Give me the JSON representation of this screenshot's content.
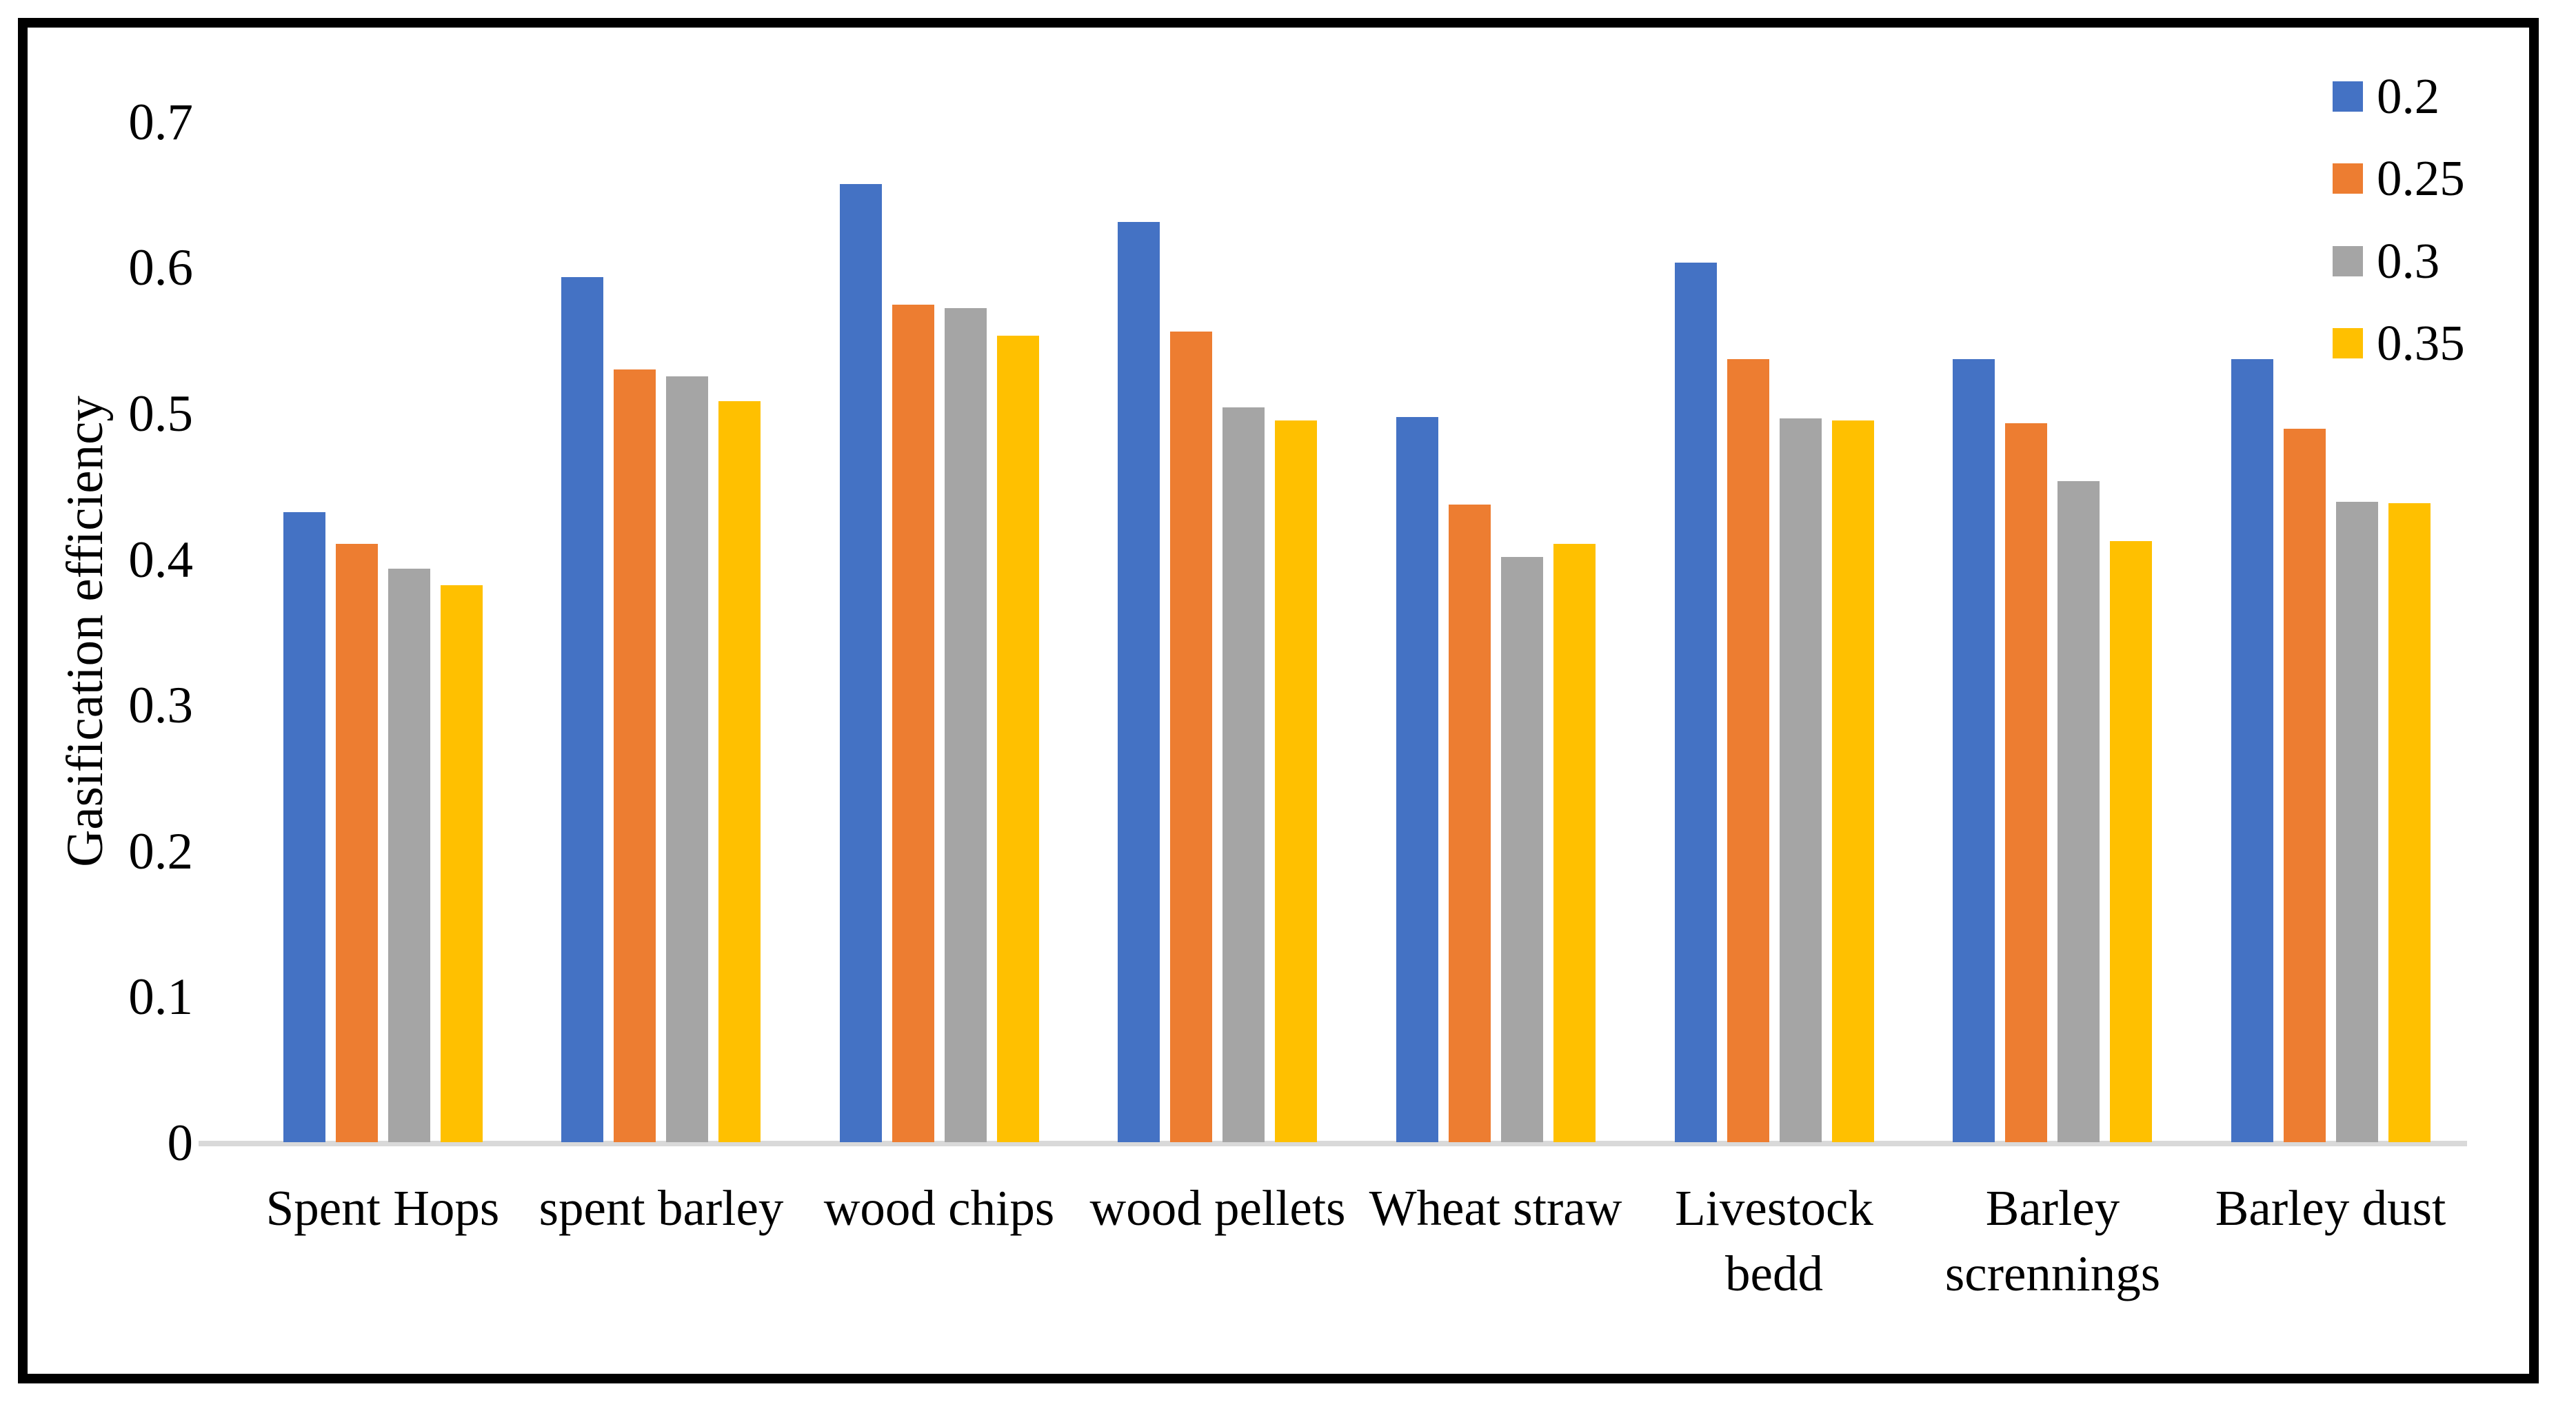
{
  "chart_data": {
    "type": "bar",
    "title": "",
    "xlabel": "",
    "ylabel": "Gasification efficiency",
    "ylim": [
      0,
      0.7
    ],
    "yticks": [
      0,
      0.1,
      0.2,
      0.3,
      0.4,
      0.5,
      0.6,
      0.7
    ],
    "ytick_labels": [
      "0",
      "0.1",
      "0.2",
      "0.3",
      "0.4",
      "0.5",
      "0.6",
      "0.7"
    ],
    "grid": false,
    "legend_position": "top-right",
    "background_color": "#FFFFFF",
    "axis_line_color": "#D9D9D9",
    "text_color": "#000000",
    "frame_color": "#000000",
    "categories": [
      "Spent Hops",
      "spent barley",
      "wood chips",
      "wood pellets",
      "Wheat straw",
      "Livestock bedd",
      "Barley scrennings",
      "Barley dust"
    ],
    "series": [
      {
        "name": "0.2",
        "color": "#4472C4",
        "values": [
          0.432,
          0.593,
          0.657,
          0.631,
          0.497,
          0.603,
          0.537,
          0.537
        ]
      },
      {
        "name": "0.25",
        "color": "#ED7D31",
        "values": [
          0.41,
          0.53,
          0.574,
          0.556,
          0.437,
          0.537,
          0.493,
          0.489
        ]
      },
      {
        "name": "0.3",
        "color": "#A5A5A5",
        "values": [
          0.393,
          0.525,
          0.572,
          0.504,
          0.401,
          0.496,
          0.453,
          0.439
        ]
      },
      {
        "name": "0.35",
        "color": "#FFC000",
        "values": [
          0.382,
          0.508,
          0.553,
          0.495,
          0.41,
          0.495,
          0.412,
          0.438
        ]
      }
    ]
  }
}
